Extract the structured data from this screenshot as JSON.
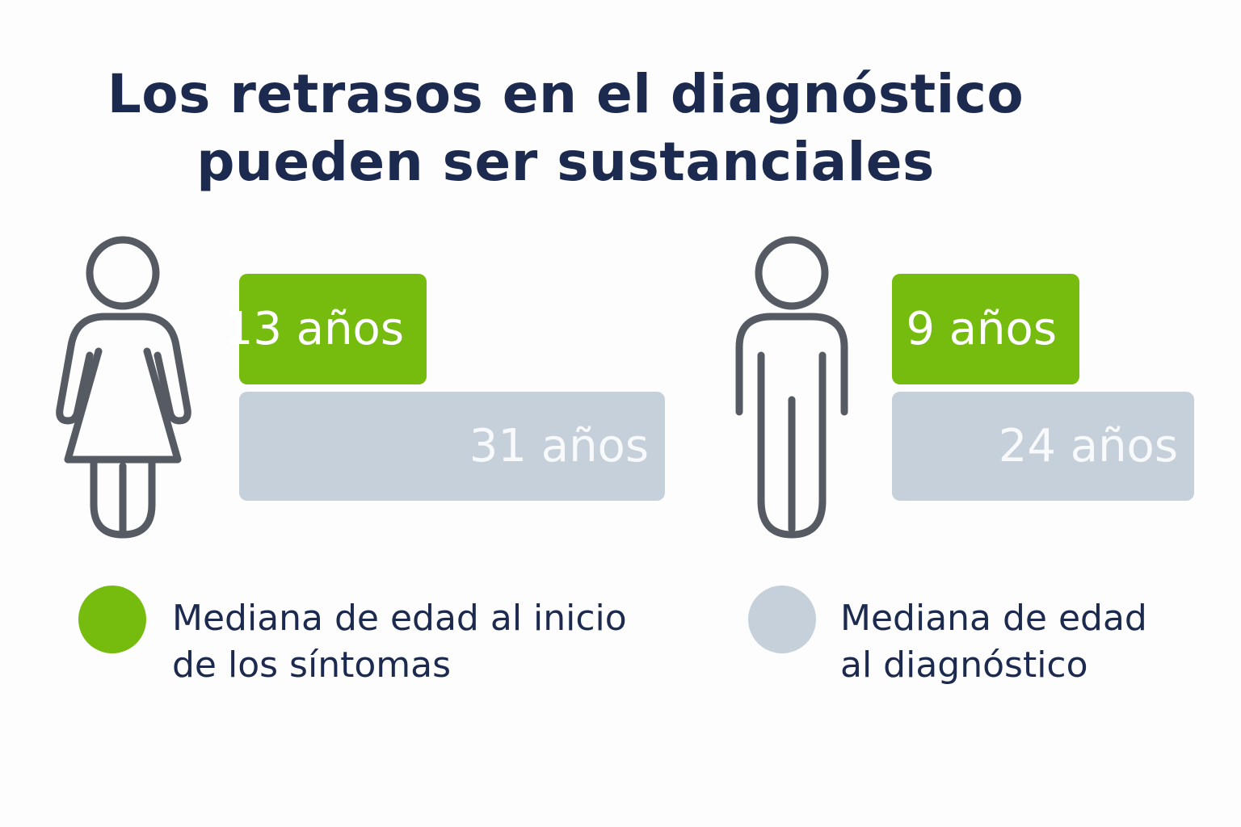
{
  "title": {
    "line1": "Los retrasos en el diagnóstico",
    "line2": "pueden ser sustanciales"
  },
  "icons": {
    "woman": "woman-icon",
    "man": "man-icon"
  },
  "colors": {
    "onset": "#76bc0f",
    "diagnosis": "#c5d0da",
    "text": "#1b2a4e",
    "icon_stroke": "#555a63"
  },
  "legend": {
    "onset": {
      "line1": "Mediana de edad al inicio",
      "line2": "de los síntomas"
    },
    "diagnosis": {
      "line1": "Mediana de edad",
      "line2": "al diagnóstico"
    }
  },
  "chart_data": {
    "type": "bar",
    "categories": [
      "woman",
      "man"
    ],
    "series": [
      {
        "name": "Mediana de edad al inicio de los síntomas",
        "values": [
          13,
          9
        ],
        "labels": [
          "13 años",
          "9 años"
        ]
      },
      {
        "name": "Mediana de edad al diagnóstico",
        "values": [
          31,
          24
        ],
        "labels": [
          "31 años",
          "24 años"
        ]
      }
    ]
  }
}
